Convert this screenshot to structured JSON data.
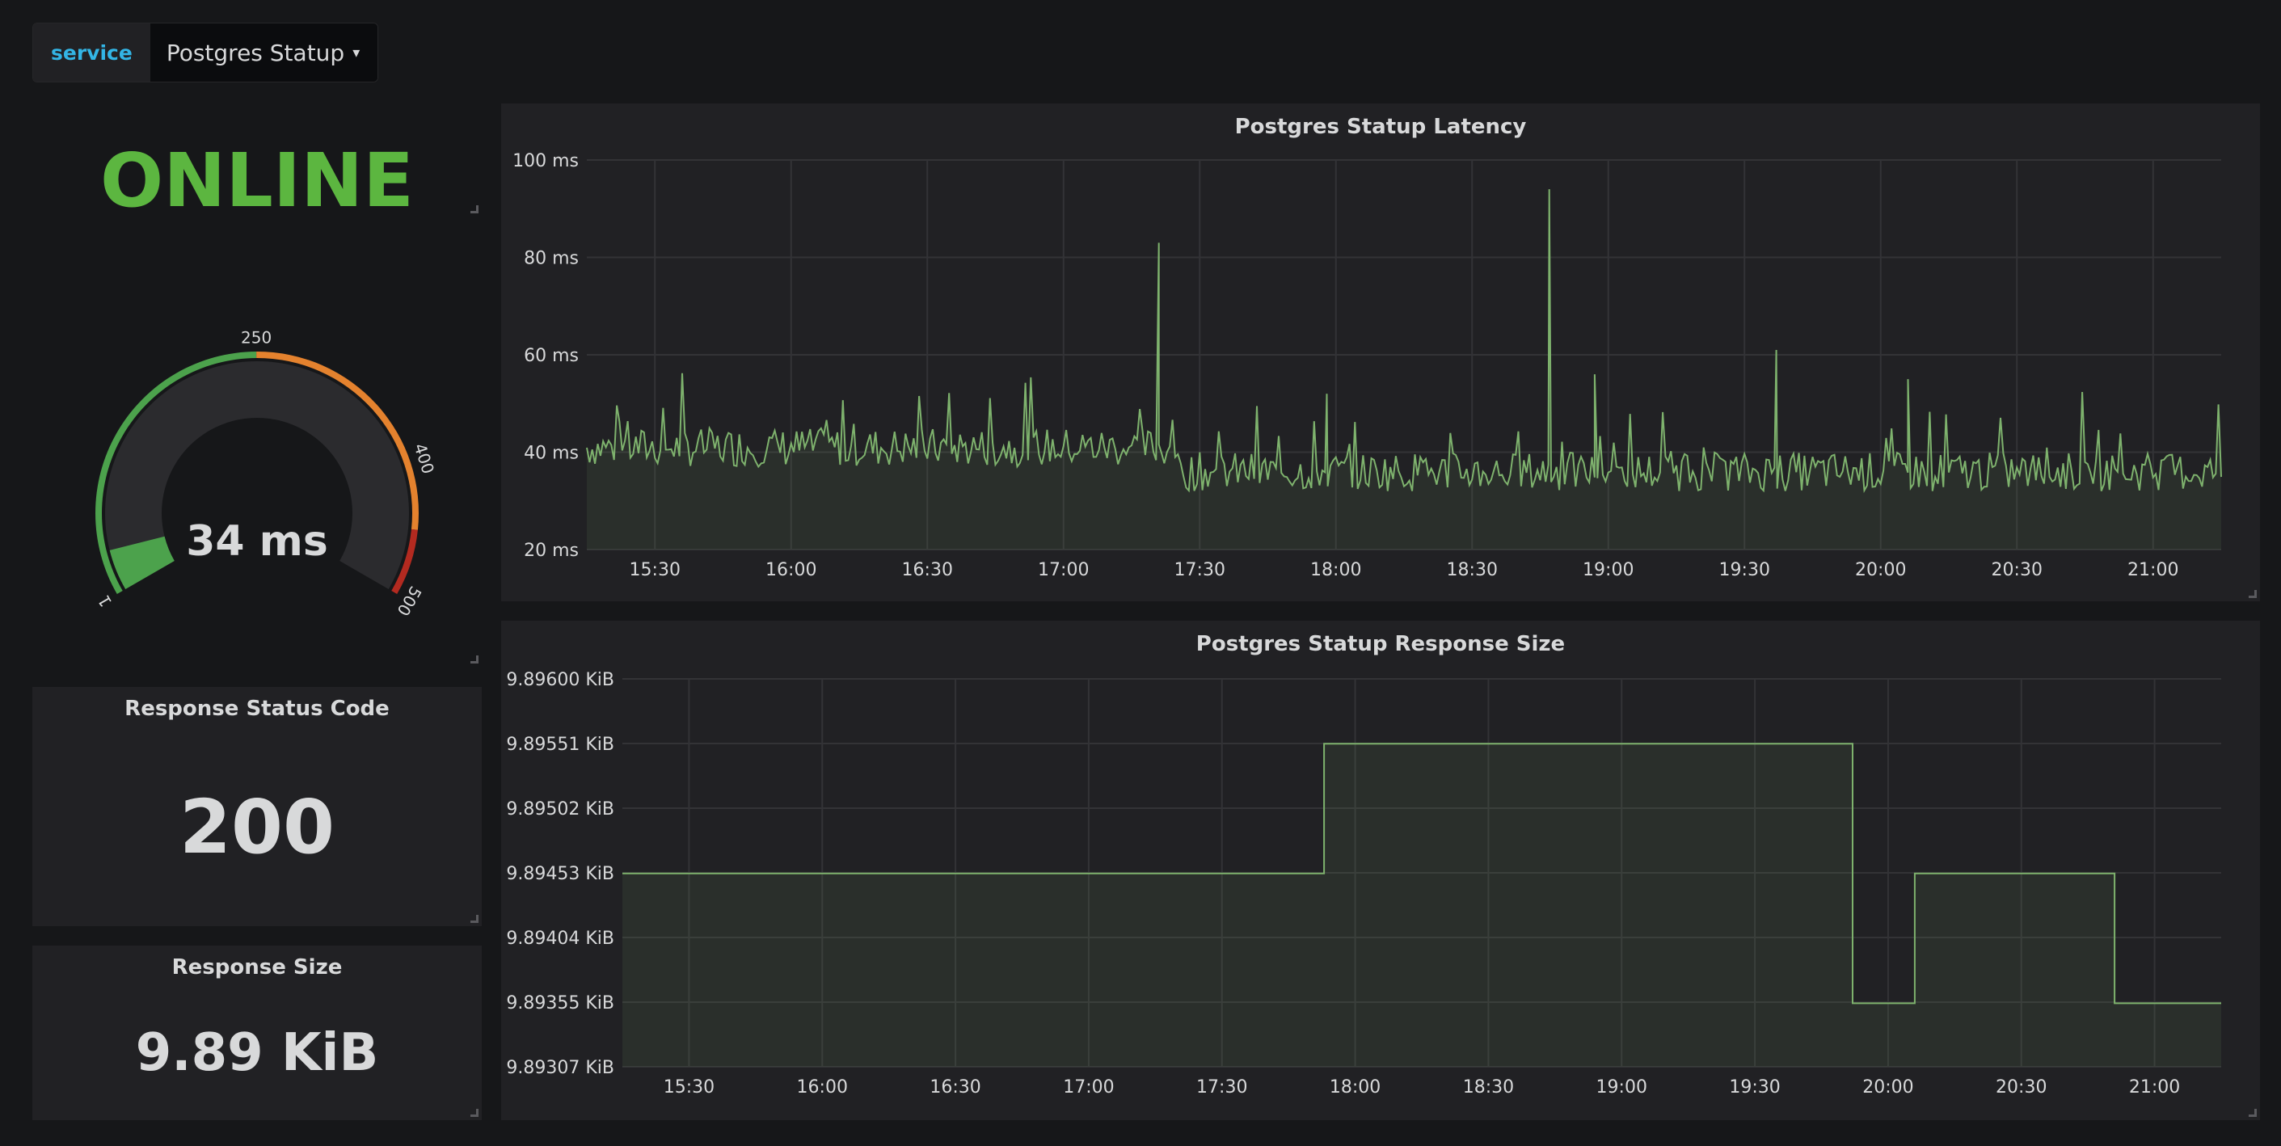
{
  "variable": {
    "label": "service",
    "value": "Postgres Statup"
  },
  "status_panel": {
    "value": "ONLINE",
    "color": "#5cb640"
  },
  "gauge_panel": {
    "value_text": "34 ms",
    "value": 34,
    "min": 1,
    "max": 500,
    "labels": [
      "1",
      "250",
      "400",
      "500"
    ],
    "colors": {
      "ok": "#4ca24c",
      "warn": "#e4822e",
      "crit": "#b32a20"
    }
  },
  "status_code_panel": {
    "title": "Response Status Code",
    "value": "200"
  },
  "response_size_panel": {
    "title": "Response Size",
    "value": "9.89 KiB"
  },
  "latency_panel": {
    "title": "Postgres Statup Latency",
    "y_ticks": [
      "100 ms",
      "80 ms",
      "60 ms",
      "40 ms",
      "20 ms"
    ],
    "x_ticks": [
      "15:30",
      "16:00",
      "16:30",
      "17:00",
      "17:30",
      "18:00",
      "18:30",
      "19:00",
      "19:30",
      "20:00",
      "20:30",
      "21:00"
    ]
  },
  "size_panel": {
    "title": "Postgres Statup Response Size",
    "y_ticks": [
      "9.89600 KiB",
      "9.89551 KiB",
      "9.89502 KiB",
      "9.89453 KiB",
      "9.89404 KiB",
      "9.89355 KiB",
      "9.89307 KiB"
    ],
    "x_ticks": [
      "15:30",
      "16:00",
      "16:30",
      "17:00",
      "17:30",
      "18:00",
      "18:30",
      "19:00",
      "19:30",
      "20:00",
      "20:30",
      "21:00"
    ]
  },
  "chart_data": [
    {
      "type": "line",
      "title": "Postgres Statup Latency",
      "unit": "ms",
      "ylim": [
        20,
        100
      ],
      "x_range": [
        "15:15",
        "21:15"
      ],
      "color": "#7eb26d",
      "baseline": 40,
      "series_points": [
        [
          "15:15",
          45
        ],
        [
          "15:40",
          42
        ],
        [
          "16:00",
          41
        ],
        [
          "16:25",
          40
        ],
        [
          "16:45",
          42
        ],
        [
          "17:00",
          40
        ],
        [
          "17:15",
          41
        ],
        [
          "17:21",
          83
        ],
        [
          "17:22",
          41
        ],
        [
          "17:30",
          36
        ],
        [
          "17:55",
          37
        ],
        [
          "17:58",
          52
        ],
        [
          "18:00",
          36
        ],
        [
          "18:30",
          36
        ],
        [
          "18:45",
          38
        ],
        [
          "18:47",
          94
        ],
        [
          "18:48",
          35
        ],
        [
          "18:57",
          56
        ],
        [
          "19:00",
          36
        ],
        [
          "19:20",
          36
        ],
        [
          "19:37",
          61
        ],
        [
          "19:40",
          37
        ],
        [
          "20:00",
          40
        ],
        [
          "20:06",
          55
        ],
        [
          "20:20",
          40
        ],
        [
          "20:30",
          36
        ],
        [
          "20:45",
          36
        ],
        [
          "21:00",
          37
        ],
        [
          "21:10",
          48
        ],
        [
          "21:15",
          35
        ]
      ]
    },
    {
      "type": "line",
      "title": "Postgres Statup Response Size",
      "unit": "KiB",
      "ylim": [
        9.89307,
        9.896
      ],
      "color": "#7eb26d",
      "step": true,
      "x": [
        "15:15",
        "17:53",
        "17:53",
        "19:52",
        "19:52",
        "20:06",
        "20:06",
        "20:51",
        "20:51",
        "21:15"
      ],
      "values": [
        9.89453,
        9.89453,
        9.89551,
        9.89551,
        9.89355,
        9.89355,
        9.89453,
        9.89453,
        9.89355,
        9.89355
      ]
    }
  ]
}
